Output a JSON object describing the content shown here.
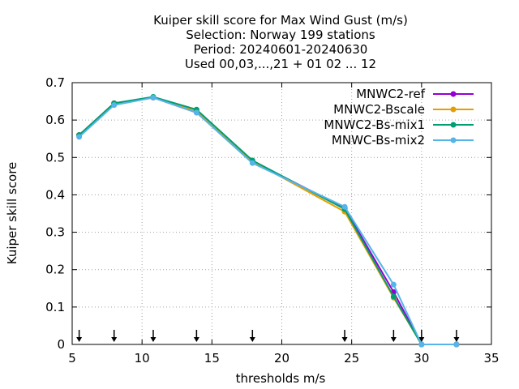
{
  "chart_data": {
    "type": "line",
    "title_lines": [
      "Kuiper skill score  for Max Wind Gust (m/s)",
      "Selection: Norway    199 stations",
      "Period: 20240601-20240630",
      "Used 00,03,...,21 + 01 02 ... 12"
    ],
    "xlabel": "thresholds m/s",
    "ylabel": "Kuiper skill score",
    "xlim": [
      5,
      35
    ],
    "ylim": [
      0,
      0.7
    ],
    "x_ticks": [
      5,
      10,
      15,
      20,
      25,
      30,
      35
    ],
    "y_ticks": [
      0,
      0.1,
      0.2,
      0.3,
      0.4,
      0.5,
      0.6,
      0.7
    ],
    "x_tick_labels": [
      "5",
      "10",
      "15",
      "20",
      "25",
      "30",
      "35"
    ],
    "y_tick_labels": [
      "0",
      "0.1",
      "0.2",
      "0.3",
      "0.4",
      "0.5",
      "0.6",
      "0.7"
    ],
    "grid": true,
    "legend_position": "top-right",
    "threshold_markers": [
      5.5,
      8,
      10.8,
      13.9,
      17.9,
      24.5,
      28,
      30,
      32.5
    ],
    "x": [
      5.5,
      8,
      10.8,
      13.9,
      17.9,
      24.5,
      28,
      30,
      32.5
    ],
    "series": [
      {
        "name": "MNWC2-ref",
        "color": "#9400d3",
        "values": [
          0.56,
          0.645,
          0.66,
          0.62,
          0.49,
          0.365,
          0.14,
          0.0,
          0.0
        ]
      },
      {
        "name": "MNWC2-Bscale",
        "color": "#e69f00",
        "values": [
          0.56,
          0.645,
          0.66,
          0.625,
          0.49,
          0.355,
          0.125,
          0.0,
          0.0
        ]
      },
      {
        "name": "MNWC2-Bs-mix1",
        "color": "#009e73",
        "values": [
          0.56,
          0.645,
          0.662,
          0.628,
          0.492,
          0.362,
          0.128,
          0.0,
          0.0
        ]
      },
      {
        "name": "MNWC-Bs-mix2",
        "color": "#56b4e9",
        "values": [
          0.555,
          0.64,
          0.66,
          0.62,
          0.485,
          0.368,
          0.16,
          0.0,
          0.0
        ]
      }
    ]
  }
}
